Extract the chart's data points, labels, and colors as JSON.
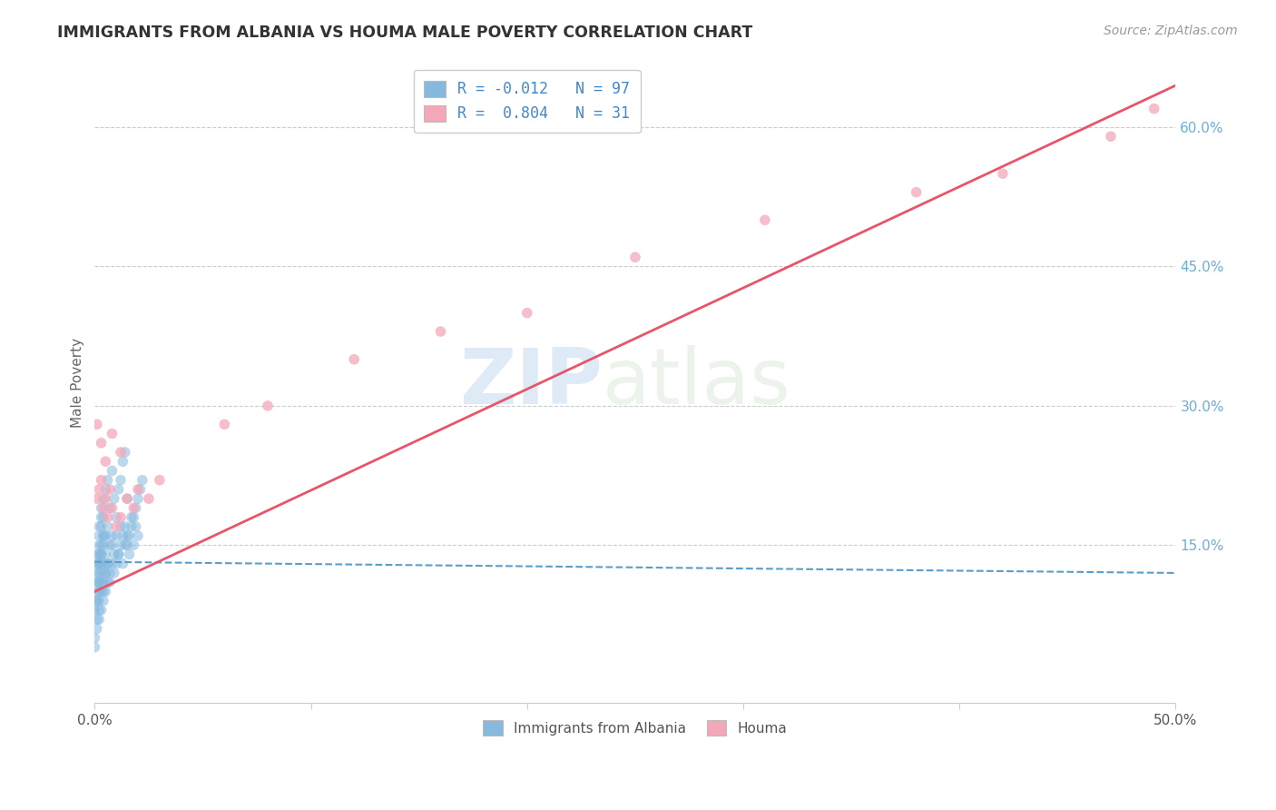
{
  "title": "IMMIGRANTS FROM ALBANIA VS HOUMA MALE POVERTY CORRELATION CHART",
  "source": "Source: ZipAtlas.com",
  "ylabel": "Male Poverty",
  "right_yticks": [
    "60.0%",
    "45.0%",
    "30.0%",
    "15.0%"
  ],
  "right_ytick_vals": [
    0.6,
    0.45,
    0.3,
    0.15
  ],
  "xlim": [
    0.0,
    0.5
  ],
  "ylim": [
    -0.02,
    0.67
  ],
  "watermark_zip": "ZIP",
  "watermark_atlas": "atlas",
  "legend_entry1_label": "Immigrants from Albania",
  "legend_entry1_R": "R = -0.012",
  "legend_entry1_N": "N = 97",
  "legend_entry2_label": "Houma",
  "legend_entry2_R": "R =  0.804",
  "legend_entry2_N": "N = 31",
  "blue_color": "#85b9de",
  "pink_color": "#f4a7b9",
  "blue_line_color": "#5b9dc9",
  "pink_line_color": "#e8546a",
  "title_color": "#333333",
  "right_axis_color": "#6baed6",
  "albania_x": [
    0.0,
    0.0,
    0.001,
    0.001,
    0.001,
    0.001,
    0.001,
    0.001,
    0.001,
    0.002,
    0.002,
    0.002,
    0.002,
    0.002,
    0.002,
    0.002,
    0.002,
    0.002,
    0.002,
    0.002,
    0.003,
    0.003,
    0.003,
    0.003,
    0.003,
    0.003,
    0.003,
    0.003,
    0.003,
    0.004,
    0.004,
    0.004,
    0.004,
    0.004,
    0.004,
    0.004,
    0.005,
    0.005,
    0.005,
    0.005,
    0.005,
    0.006,
    0.006,
    0.006,
    0.006,
    0.007,
    0.007,
    0.007,
    0.008,
    0.008,
    0.008,
    0.009,
    0.009,
    0.01,
    0.01,
    0.011,
    0.011,
    0.012,
    0.012,
    0.013,
    0.013,
    0.014,
    0.014,
    0.015,
    0.015,
    0.016,
    0.017,
    0.018,
    0.019,
    0.02,
    0.021,
    0.022,
    0.0,
    0.001,
    0.001,
    0.002,
    0.002,
    0.003,
    0.003,
    0.004,
    0.004,
    0.005,
    0.006,
    0.007,
    0.008,
    0.009,
    0.01,
    0.011,
    0.012,
    0.013,
    0.014,
    0.015,
    0.016,
    0.017,
    0.018,
    0.019,
    0.02
  ],
  "albania_y": [
    0.05,
    0.08,
    0.1,
    0.11,
    0.12,
    0.13,
    0.06,
    0.09,
    0.14,
    0.07,
    0.1,
    0.11,
    0.13,
    0.14,
    0.15,
    0.16,
    0.08,
    0.12,
    0.17,
    0.09,
    0.1,
    0.12,
    0.13,
    0.14,
    0.15,
    0.17,
    0.18,
    0.11,
    0.19,
    0.09,
    0.11,
    0.13,
    0.15,
    0.16,
    0.18,
    0.2,
    0.1,
    0.12,
    0.14,
    0.16,
    0.21,
    0.11,
    0.13,
    0.17,
    0.22,
    0.12,
    0.15,
    0.19,
    0.13,
    0.16,
    0.23,
    0.14,
    0.2,
    0.13,
    0.18,
    0.14,
    0.21,
    0.15,
    0.22,
    0.16,
    0.24,
    0.17,
    0.25,
    0.15,
    0.2,
    0.16,
    0.17,
    0.18,
    0.19,
    0.2,
    0.21,
    0.22,
    0.04,
    0.07,
    0.09,
    0.11,
    0.13,
    0.08,
    0.14,
    0.1,
    0.16,
    0.12,
    0.13,
    0.11,
    0.15,
    0.12,
    0.16,
    0.14,
    0.17,
    0.13,
    0.15,
    0.16,
    0.14,
    0.18,
    0.15,
    0.17,
    0.16
  ],
  "houma_x": [
    0.001,
    0.002,
    0.003,
    0.004,
    0.005,
    0.006,
    0.007,
    0.008,
    0.01,
    0.012,
    0.015,
    0.018,
    0.02,
    0.025,
    0.03,
    0.001,
    0.003,
    0.005,
    0.008,
    0.012,
    0.06,
    0.08,
    0.12,
    0.16,
    0.2,
    0.25,
    0.31,
    0.38,
    0.42,
    0.47,
    0.49
  ],
  "houma_y": [
    0.2,
    0.21,
    0.22,
    0.19,
    0.2,
    0.18,
    0.21,
    0.19,
    0.17,
    0.18,
    0.2,
    0.19,
    0.21,
    0.2,
    0.22,
    0.28,
    0.26,
    0.24,
    0.27,
    0.25,
    0.28,
    0.3,
    0.35,
    0.38,
    0.4,
    0.46,
    0.5,
    0.53,
    0.55,
    0.59,
    0.62
  ],
  "houma_line_x0": 0.0,
  "houma_line_x1": 0.5,
  "houma_line_y0": 0.1,
  "houma_line_y1": 0.645,
  "albania_line_x0": 0.0,
  "albania_line_x1": 0.5,
  "albania_line_y0": 0.132,
  "albania_line_y1": 0.12
}
